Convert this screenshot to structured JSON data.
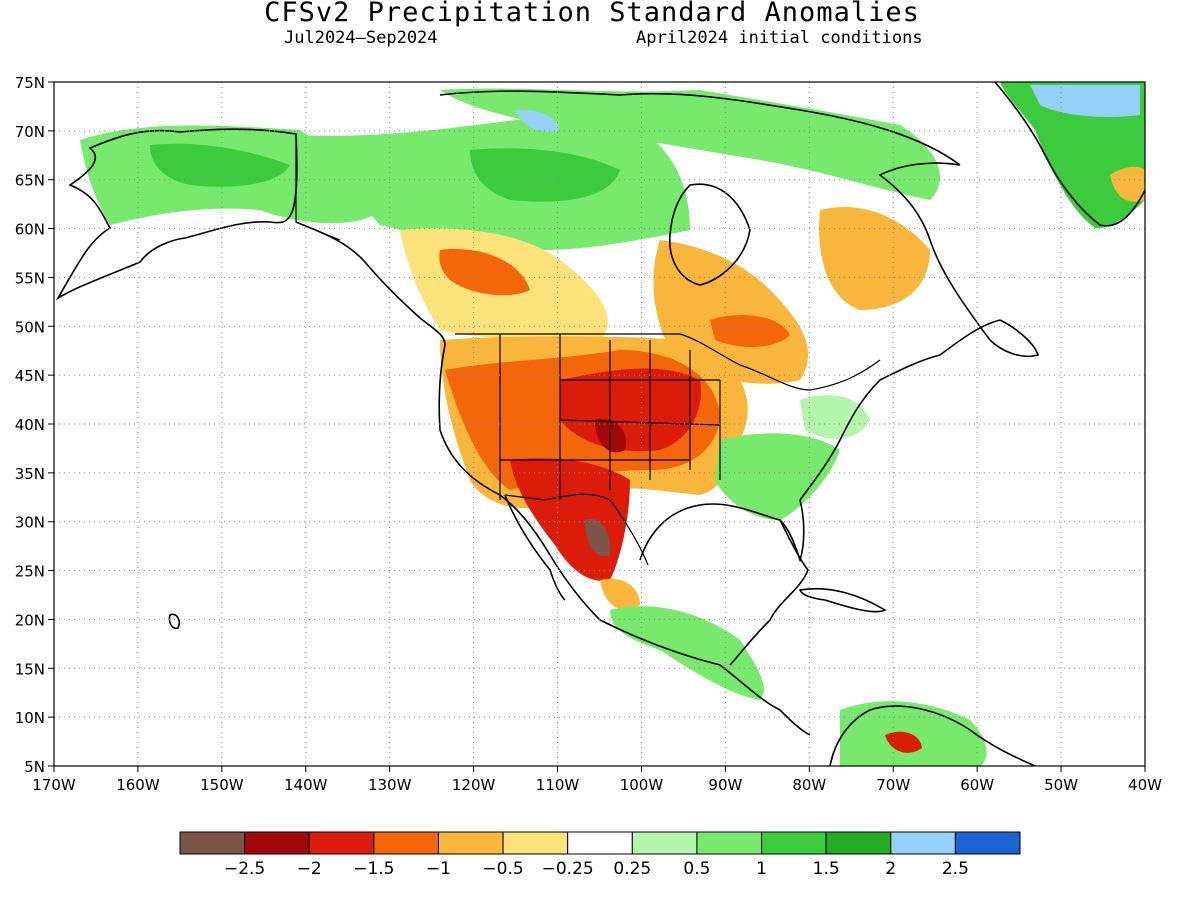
{
  "header": {
    "title": "CFSv2 Precipitation Standard Anomalies",
    "period": "Jul2024–Sep2024",
    "initial_conditions": "April2024 initial conditions"
  },
  "map": {
    "lon_range": [
      -170,
      -40
    ],
    "lat_range": [
      5,
      75
    ],
    "lon_ticks": [
      {
        "v": -170,
        "label": "170W"
      },
      {
        "v": -160,
        "label": "160W"
      },
      {
        "v": -150,
        "label": "150W"
      },
      {
        "v": -140,
        "label": "140W"
      },
      {
        "v": -130,
        "label": "130W"
      },
      {
        "v": -120,
        "label": "120W"
      },
      {
        "v": -110,
        "label": "110W"
      },
      {
        "v": -100,
        "label": "100W"
      },
      {
        "v": -90,
        "label": "90W"
      },
      {
        "v": -80,
        "label": "80W"
      },
      {
        "v": -70,
        "label": "70W"
      },
      {
        "v": -60,
        "label": "60W"
      },
      {
        "v": -50,
        "label": "50W"
      },
      {
        "v": -40,
        "label": "40W"
      }
    ],
    "lat_ticks": [
      {
        "v": 75,
        "label": "75N"
      },
      {
        "v": 70,
        "label": "70N"
      },
      {
        "v": 65,
        "label": "65N"
      },
      {
        "v": 60,
        "label": "60N"
      },
      {
        "v": 55,
        "label": "55N"
      },
      {
        "v": 50,
        "label": "50N"
      },
      {
        "v": 45,
        "label": "45N"
      },
      {
        "v": 40,
        "label": "40N"
      },
      {
        "v": 35,
        "label": "35N"
      },
      {
        "v": 30,
        "label": "30N"
      },
      {
        "v": 25,
        "label": "25N"
      },
      {
        "v": 20,
        "label": "20N"
      },
      {
        "v": 15,
        "label": "15N"
      },
      {
        "v": 10,
        "label": "10N"
      },
      {
        "v": 5,
        "label": "5N"
      }
    ],
    "gridlines": "dotted",
    "regions": [
      {
        "name": "southwest-us",
        "anomaly": -1.5
      },
      {
        "name": "central-plains",
        "anomaly": -1.5
      },
      {
        "name": "northern-mexico",
        "anomaly": -2.5
      },
      {
        "name": "alaska",
        "anomaly": 1.0
      },
      {
        "name": "northern-canada",
        "anomaly": 1.0
      },
      {
        "name": "southeast-us",
        "anomaly": 1.0
      },
      {
        "name": "greenland",
        "anomaly": 1.5
      }
    ]
  },
  "colorbar": {
    "colors": [
      "#7b5548",
      "#a20808",
      "#db1c0a",
      "#f4660a",
      "#f9b63c",
      "#fbe27b",
      "#ffffff",
      "#b3f5ab",
      "#77ea6e",
      "#3ccb3c",
      "#24ad24",
      "#95d0f8",
      "#1c63d4"
    ],
    "labels": [
      "−2.5",
      "−2",
      "−1.5",
      "−1",
      "−0.5",
      "−0.25",
      "0.25",
      "0.5",
      "1",
      "1.5",
      "2",
      "2.5"
    ]
  }
}
